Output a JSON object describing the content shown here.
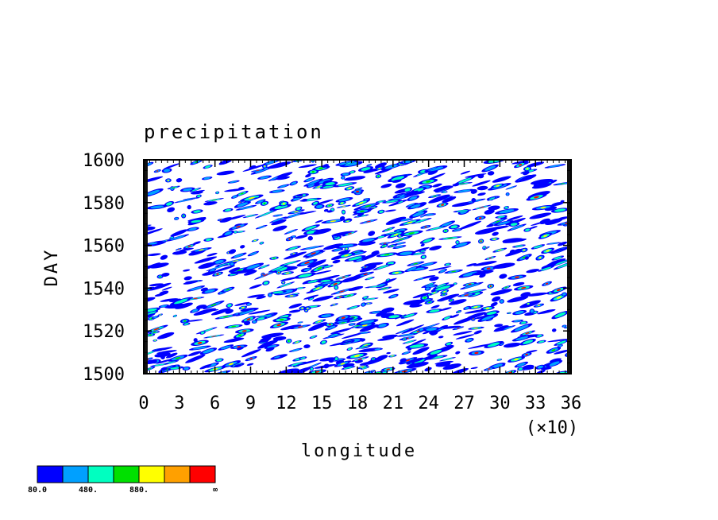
{
  "chart_data": {
    "type": "heatmap",
    "title": "precipitation",
    "xlabel": "longitude",
    "ylabel": "DAY",
    "x_multiplier_label": "(×10)",
    "xlim": [
      0,
      36
    ],
    "ylim": [
      1500,
      1600
    ],
    "x_ticks": [
      {
        "value": 0,
        "label": "0"
      },
      {
        "value": 3,
        "label": "3"
      },
      {
        "value": 6,
        "label": "6"
      },
      {
        "value": 9,
        "label": "9"
      },
      {
        "value": 12,
        "label": "12"
      },
      {
        "value": 15,
        "label": "15"
      },
      {
        "value": 18,
        "label": "18"
      },
      {
        "value": 21,
        "label": "21"
      },
      {
        "value": 24,
        "label": "24"
      },
      {
        "value": 27,
        "label": "27"
      },
      {
        "value": 30,
        "label": "30"
      },
      {
        "value": 33,
        "label": "33"
      },
      {
        "value": 36,
        "label": "36"
      }
    ],
    "y_ticks": [
      {
        "value": 1500,
        "label": "1500"
      },
      {
        "value": 1520,
        "label": "1520"
      },
      {
        "value": 1540,
        "label": "1540"
      },
      {
        "value": 1560,
        "label": "1560"
      },
      {
        "value": 1580,
        "label": "1580"
      },
      {
        "value": 1600,
        "label": "1600"
      }
    ],
    "colorbar": {
      "colors": [
        "#0000ff",
        "#00a0ff",
        "#00ffc0",
        "#00e000",
        "#ffff00",
        "#ffa000",
        "#ff0000"
      ],
      "labels": [
        "80.0",
        "480.",
        "880.",
        "∞"
      ],
      "label_after_box": [
        0,
        2,
        4,
        7
      ]
    }
  }
}
